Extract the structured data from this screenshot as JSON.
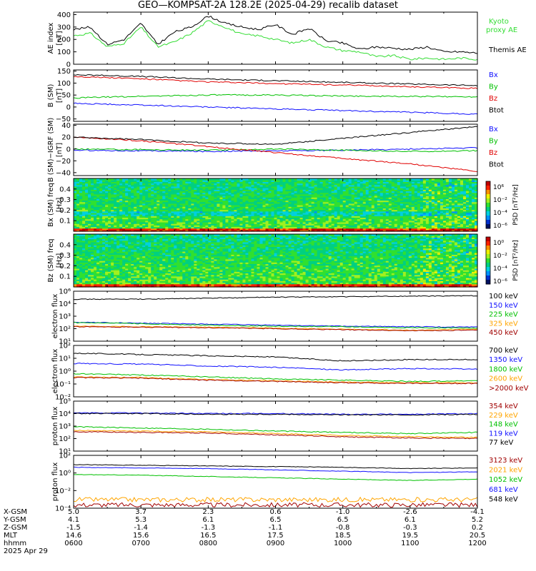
{
  "title": "GEO—KOMPSAT-2A 128.2E (2025-04-29) recalib dataset",
  "colors": {
    "black": "#000000",
    "blue": "#1010ff",
    "green": "#00c000",
    "red": "#e00000",
    "orange": "#ffa500",
    "brick": "#a00000",
    "navy": "#000090",
    "kyoto": "#33dd33"
  },
  "time_axis": {
    "start_hour": 6,
    "end_hour": 12,
    "rows": [
      {
        "label": "X-GSM",
        "values": [
          "5.0",
          "3.7",
          "2.3",
          "0.6",
          "-1.0",
          "-2.6",
          "-4.1"
        ]
      },
      {
        "label": "Y-GSM",
        "values": [
          "4.1",
          "5.3",
          "6.1",
          "6.5",
          "6.5",
          "6.1",
          "5.2"
        ]
      },
      {
        "label": "Z-GSM",
        "values": [
          "-1.5",
          "-1.4",
          "-1.3",
          "-1.1",
          "-0.8",
          "-0.3",
          "0.2"
        ]
      },
      {
        "label": "MLT",
        "values": [
          "14.6",
          "15.6",
          "16.5",
          "17.5",
          "18.5",
          "19.5",
          "20.5"
        ]
      },
      {
        "label": "hhmm",
        "values": [
          "0600",
          "0700",
          "0800",
          "0900",
          "1000",
          "1100",
          "1200"
        ]
      }
    ],
    "date": "2025 Apr 29"
  },
  "chart_data": [
    {
      "type": "line",
      "ylabel": "AE index [nT]",
      "ylim": [
        0,
        420
      ],
      "yticks": [
        "0",
        "100",
        "200",
        "300",
        "400"
      ],
      "legend": [
        "Kyoto proxy AE",
        "Themis AE"
      ],
      "series": [
        {
          "name": "Kyoto proxy AE",
          "color": "kyoto",
          "x": [
            6.0,
            6.25,
            6.5,
            6.75,
            7.0,
            7.25,
            7.5,
            7.75,
            8.0,
            8.25,
            8.5,
            8.75,
            9.0,
            9.25,
            9.5,
            9.75,
            10.0,
            10.25,
            10.5,
            10.75,
            11.0,
            11.25,
            11.5,
            11.75,
            12.0
          ],
          "values": [
            230,
            250,
            140,
            170,
            300,
            140,
            180,
            250,
            350,
            300,
            240,
            230,
            200,
            170,
            200,
            140,
            110,
            100,
            60,
            70,
            40,
            50,
            40,
            50,
            40
          ]
        },
        {
          "name": "Themis AE",
          "color": "black",
          "x": [
            6.0,
            6.25,
            6.5,
            6.75,
            7.0,
            7.25,
            7.5,
            7.75,
            8.0,
            8.25,
            8.5,
            8.75,
            9.0,
            9.25,
            9.5,
            9.75,
            10.0,
            10.25,
            10.5,
            10.75,
            11.0,
            11.25,
            11.5,
            11.75,
            12.0
          ],
          "values": [
            280,
            300,
            160,
            200,
            330,
            160,
            260,
            300,
            390,
            330,
            300,
            280,
            320,
            240,
            290,
            190,
            170,
            120,
            140,
            130,
            120,
            140,
            100,
            100,
            90
          ]
        }
      ]
    },
    {
      "type": "line",
      "ylabel": "B (SM) [nT]",
      "ylim": [
        -60,
        155
      ],
      "yticks": [
        "−50",
        "0",
        "50",
        "100",
        "150"
      ],
      "legend": [
        "Bx",
        "By",
        "Bz",
        "Btot"
      ],
      "series": [
        {
          "name": "Bx",
          "color": "blue",
          "x": [
            6,
            7,
            8,
            9,
            10,
            11,
            12
          ],
          "values": [
            15,
            8,
            0,
            -8,
            -15,
            -22,
            -30
          ]
        },
        {
          "name": "By",
          "color": "green",
          "x": [
            6,
            7,
            8,
            9,
            10,
            11,
            12
          ],
          "values": [
            38,
            45,
            50,
            50,
            46,
            44,
            43
          ]
        },
        {
          "name": "Bz",
          "color": "red",
          "x": [
            6,
            7,
            8,
            9,
            10,
            11,
            12
          ],
          "values": [
            128,
            118,
            105,
            98,
            92,
            85,
            78
          ]
        },
        {
          "name": "Btot",
          "color": "black",
          "x": [
            6,
            7,
            8,
            9,
            10,
            11,
            12
          ],
          "values": [
            135,
            128,
            117,
            110,
            103,
            96,
            90
          ]
        }
      ]
    },
    {
      "type": "line",
      "ylabel": "B (SM)−IGRF (SM) [nT]",
      "ylim": [
        -45,
        42
      ],
      "yticks": [
        "−40",
        "−20",
        "0",
        "20",
        "40"
      ],
      "legend": [
        "Bx",
        "By",
        "Bz",
        "Btot"
      ],
      "series": [
        {
          "name": "Bx",
          "color": "blue",
          "x": [
            6,
            7,
            8,
            9,
            10,
            11,
            12
          ],
          "values": [
            -2,
            -3,
            -4,
            -3,
            -2,
            0,
            2
          ]
        },
        {
          "name": "By",
          "color": "green",
          "x": [
            6,
            7,
            8,
            9,
            10,
            11,
            12
          ],
          "values": [
            0,
            -1,
            -2,
            0,
            -2,
            -4,
            -3
          ]
        },
        {
          "name": "Bz",
          "color": "red",
          "x": [
            6,
            7,
            8,
            9,
            10,
            11,
            12
          ],
          "values": [
            20,
            14,
            4,
            -6,
            -16,
            -25,
            -38
          ]
        },
        {
          "name": "Btot",
          "color": "black",
          "x": [
            6,
            7,
            8,
            9,
            10,
            11,
            12
          ],
          "values": [
            20,
            16,
            10,
            8,
            18,
            28,
            38
          ]
        }
      ]
    },
    {
      "type": "heatmap",
      "ylabel": "Bx (SM) freq [Hz]",
      "ylim": [
        0,
        0.5
      ],
      "yticks": [
        "0.1",
        "0.2",
        "0.3",
        "0.4"
      ],
      "colorbar": {
        "label": "PSD [nT²/Hz]",
        "ticks": [
          "10⁶",
          "10⁻²",
          "10⁻⁴",
          "10⁻⁶"
        ]
      }
    },
    {
      "type": "heatmap",
      "ylabel": "Bz (SM) freq [Hz]",
      "ylim": [
        0,
        0.5
      ],
      "yticks": [
        "0.1",
        "0.2",
        "0.3",
        "0.4"
      ],
      "colorbar": {
        "label": "PSD [nT²/Hz]",
        "ticks": [
          "10⁰",
          "10⁻²",
          "10⁻⁴",
          "10⁻⁶"
        ]
      }
    },
    {
      "type": "line",
      "log": true,
      "ylabel": "electron flux",
      "ylim_exp": [
        1,
        6
      ],
      "yticks": [
        "10⁶",
        "10⁴",
        "10³",
        "10²",
        "10¹"
      ],
      "legend": [
        "100 keV",
        "150 keV",
        "225 keV",
        "325 keV",
        "450 keV"
      ],
      "series": [
        {
          "name": "100 keV",
          "color": "black",
          "x": [
            6,
            7,
            8,
            9,
            10,
            11,
            12
          ],
          "values": [
            5.2,
            5.2,
            5.3,
            5.4,
            5.45,
            5.5,
            5.55
          ]
        },
        {
          "name": "150 keV",
          "color": "blue",
          "x": [
            6,
            7,
            8,
            9,
            10,
            11,
            12
          ],
          "values": [
            2.9,
            2.8,
            2.7,
            2.6,
            2.5,
            2.45,
            2.4
          ]
        },
        {
          "name": "225 keV",
          "color": "green",
          "x": [
            6,
            7,
            8,
            9,
            10,
            11,
            12
          ],
          "values": [
            2.85,
            2.75,
            2.6,
            2.5,
            2.45,
            2.35,
            2.3
          ]
        },
        {
          "name": "325 keV",
          "color": "orange",
          "x": [
            6,
            7,
            8,
            9,
            10,
            11,
            12
          ],
          "values": [
            2.5,
            2.45,
            2.4,
            2.3,
            2.2,
            2.1,
            2.2
          ]
        },
        {
          "name": "450 keV",
          "color": "brick",
          "x": [
            6,
            7,
            8,
            9,
            10,
            11,
            12
          ],
          "values": [
            2.45,
            2.4,
            2.35,
            2.25,
            2.15,
            2.05,
            2.1
          ]
        }
      ]
    },
    {
      "type": "line",
      "log": true,
      "ylabel": "electron flux",
      "ylim_exp": [
        -2,
        2
      ],
      "yticks": [
        "10²",
        "10¹",
        "10⁰",
        "10⁻¹",
        "10⁻²"
      ],
      "legend": [
        "700 keV",
        "1350 keV",
        "1800 keV",
        "2600 keV",
        ">2000 keV"
      ],
      "series": [
        {
          "name": "700 keV",
          "color": "black",
          "x": [
            6,
            7,
            8,
            9,
            10,
            11,
            12
          ],
          "values": [
            1.4,
            1.3,
            1.2,
            1.1,
            0.8,
            0.9,
            0.9
          ]
        },
        {
          "name": "1350 keV",
          "color": "blue",
          "x": [
            6,
            7,
            8,
            9,
            10,
            11,
            12
          ],
          "values": [
            0.6,
            0.55,
            0.4,
            0.3,
            0.1,
            0.2,
            0.15
          ]
        },
        {
          "name": "1800 keV",
          "color": "green",
          "x": [
            6,
            7,
            8,
            9,
            10,
            11,
            12
          ],
          "values": [
            -0.2,
            -0.3,
            -0.45,
            -0.6,
            -0.7,
            -0.8,
            -0.75
          ]
        },
        {
          "name": "2600 keV",
          "color": "orange",
          "x": [
            6,
            7,
            8,
            9,
            10,
            11,
            12
          ],
          "values": [
            -0.45,
            -0.5,
            -0.65,
            -0.75,
            -0.85,
            -0.9,
            -0.9
          ]
        },
        {
          "name": ">2000 keV",
          "color": "brick",
          "x": [
            6,
            7,
            8,
            9,
            10,
            11,
            12
          ],
          "values": [
            -0.5,
            -0.55,
            -0.7,
            -0.8,
            -0.9,
            -0.95,
            -0.95
          ]
        }
      ]
    },
    {
      "type": "line",
      "log": true,
      "ylabel": "proton flux",
      "ylim_exp": [
        1,
        5
      ],
      "yticks": [
        "10⁵",
        "10⁴",
        "10³",
        "10²",
        "10¹"
      ],
      "legend": [
        "354 keV",
        "229 keV",
        "148 keV",
        "119 keV",
        "77 keV"
      ],
      "series": [
        {
          "name": "354 keV",
          "color": "brick",
          "x": [
            6,
            7,
            8,
            9,
            10,
            11,
            12
          ],
          "values": [
            2.55,
            2.5,
            2.45,
            2.3,
            2.15,
            2.05,
            2.0
          ]
        },
        {
          "name": "229 keV",
          "color": "orange",
          "x": [
            6,
            7,
            8,
            9,
            10,
            11,
            12
          ],
          "values": [
            2.65,
            2.6,
            2.55,
            2.4,
            2.25,
            2.15,
            2.1
          ]
        },
        {
          "name": "148 keV",
          "color": "green",
          "x": [
            6,
            7,
            8,
            9,
            10,
            11,
            12
          ],
          "values": [
            2.95,
            2.85,
            2.75,
            2.6,
            2.5,
            2.4,
            2.5
          ]
        },
        {
          "name": "119 keV",
          "color": "blue",
          "x": [
            6,
            7,
            8,
            9,
            10,
            11,
            12
          ],
          "values": [
            4.05,
            4.05,
            4.0,
            4.0,
            3.95,
            3.95,
            4.0
          ]
        },
        {
          "name": "77 keV",
          "color": "black",
          "x": [
            6,
            7,
            8,
            9,
            10,
            11,
            12
          ],
          "values": [
            4.0,
            4.0,
            3.95,
            3.95,
            3.9,
            3.9,
            3.95
          ]
        }
      ]
    },
    {
      "type": "line",
      "log": true,
      "ylabel": "proton flux",
      "ylim_exp": [
        -4.5,
        3.5
      ],
      "yticks": [
        "10²",
        "10⁰",
        "10⁻²",
        "10⁻⁴"
      ],
      "legend": [
        "3123 keV",
        "2021 keV",
        "1052 keV",
        "681 keV",
        "548 keV"
      ],
      "series": [
        {
          "name": "3123 keV",
          "color": "brick",
          "x": [
            6,
            7,
            8,
            9,
            10,
            11,
            12
          ],
          "values": [
            -4.0,
            -4.0,
            -4.0,
            -4.0,
            -4.0,
            -4.0,
            -4.0
          ]
        },
        {
          "name": "2021 keV",
          "color": "orange",
          "x": [
            6,
            7,
            8,
            9,
            10,
            11,
            12
          ],
          "values": [
            -3.2,
            -3.2,
            -3.2,
            -3.2,
            -3.2,
            -3.2,
            -3.2
          ]
        },
        {
          "name": "1052 keV",
          "color": "green",
          "x": [
            6,
            7,
            8,
            9,
            10,
            11,
            12
          ],
          "values": [
            0.6,
            0.5,
            0.3,
            0.1,
            -0.1,
            -0.3,
            -0.1
          ]
        },
        {
          "name": "681 keV",
          "color": "blue",
          "x": [
            6,
            7,
            8,
            9,
            10,
            11,
            12
          ],
          "values": [
            1.7,
            1.6,
            1.5,
            1.3,
            1.1,
            0.9,
            1.0
          ]
        },
        {
          "name": "548 keV",
          "color": "black",
          "x": [
            6,
            7,
            8,
            9,
            10,
            11,
            12
          ],
          "values": [
            2.1,
            2.0,
            1.9,
            1.8,
            1.7,
            1.5,
            1.6
          ]
        }
      ]
    }
  ]
}
